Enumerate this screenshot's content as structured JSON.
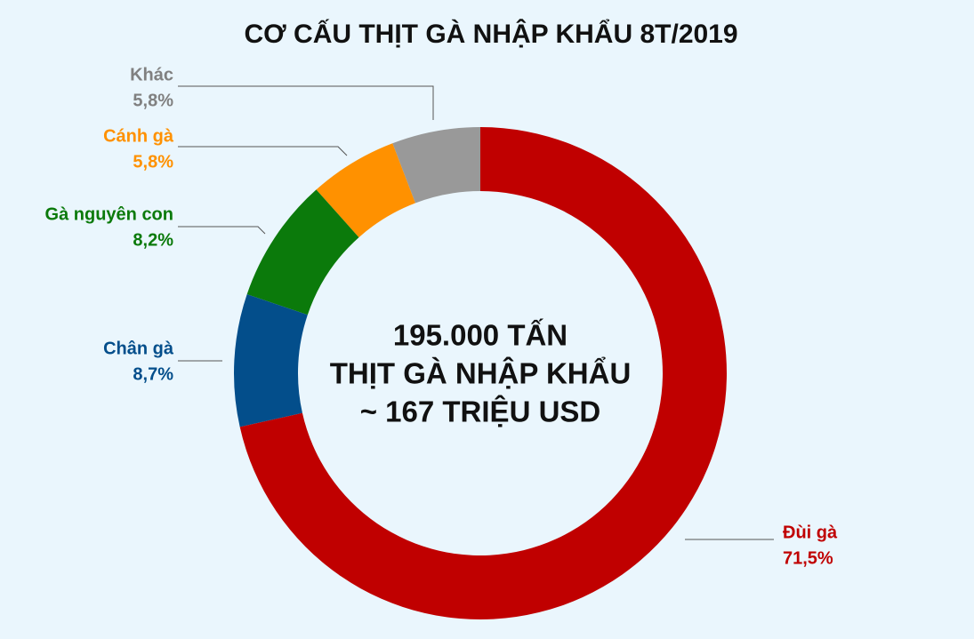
{
  "chart_data": {
    "type": "donut",
    "title": "CƠ CẤU THỊT GÀ NHẬP KHẨU 8T/2019",
    "annotations": [
      "195.000 TẤN",
      "THỊT GÀ NHẬP KHẨU",
      "~ 167 TRIỆU USD"
    ],
    "categories": [
      "Đùi gà",
      "Chân gà",
      "Gà nguyên con",
      "Cánh gà",
      "Khác"
    ],
    "values": [
      71.5,
      8.7,
      8.2,
      5.8,
      5.8
    ],
    "value_labels": [
      "71,5%",
      "8,7%",
      "8,2%",
      "5,8%",
      "5,8%"
    ],
    "colors": [
      "#c00000",
      "#034e8b",
      "#0b7a0b",
      "#ff9100",
      "#999999"
    ]
  }
}
